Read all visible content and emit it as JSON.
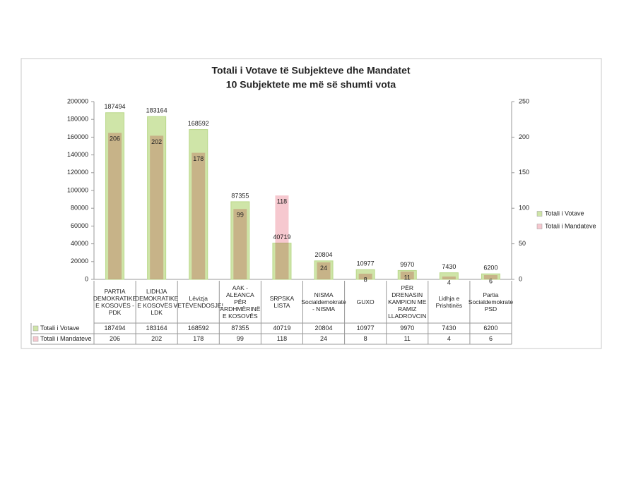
{
  "chart_data": {
    "type": "bar",
    "title": "Totali i Votave të Subjekteve dhe Mandatet",
    "subtitle": "10 Subjektete me më së shumti vota",
    "categories": [
      "PARTIA DEMOKRATIKE E KOSOVËS - PDK",
      "LIDHJA DEMOKRATIKE E KOSOVËS - LDK",
      "Lëvizja VETËVENDOSJE!",
      "AAK - ALEANCA PËR ARDHMËRINË E KOSOVËS",
      "SRPSKA LISTA",
      "NISMA Socialdemokrate - NISMA",
      "GUXO",
      "PËR DRENASIN KAMPION ME RAMIZ LLADROVCIN",
      "Lidhja e Prishtinës",
      "Partia Socialdemokrate PSD"
    ],
    "series": [
      {
        "name": "Totali i Votave",
        "color": "#cfe5a8",
        "values": [
          187494,
          183164,
          168592,
          87355,
          40719,
          20804,
          10977,
          9970,
          7430,
          6200
        ]
      },
      {
        "name": "Totali i Mandateve",
        "color": "#f6c8cf",
        "axis": "y2",
        "values": [
          206,
          202,
          178,
          99,
          118,
          24,
          8,
          11,
          4,
          6
        ]
      }
    ],
    "ylim": [
      0,
      200000
    ],
    "yticks": [
      0,
      20000,
      40000,
      60000,
      80000,
      100000,
      120000,
      140000,
      160000,
      180000,
      200000
    ],
    "y2lim": [
      0,
      250
    ],
    "y2ticks": [
      0,
      50,
      100,
      150,
      200,
      250
    ],
    "grid": false,
    "legend": "right"
  }
}
